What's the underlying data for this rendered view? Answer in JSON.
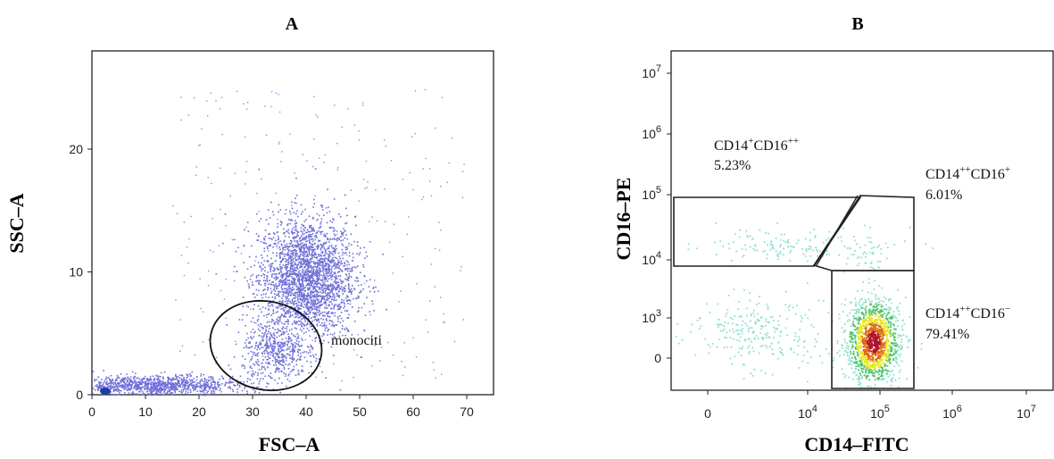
{
  "chart_data": [
    {
      "type": "scatter",
      "panel_label": "A",
      "xlabel": "FSC–A",
      "ylabel": "SSC–A",
      "xlim": [
        0,
        75
      ],
      "ylim": [
        0,
        28
      ],
      "x_ticks": [
        0,
        10,
        20,
        30,
        40,
        50,
        60,
        70
      ],
      "y_ticks": [
        0,
        10,
        20
      ],
      "point_color": "#6f6fd8",
      "dense_color": "#1a3fa0",
      "populations": [
        {
          "center": [
            40,
            9.5
          ],
          "spread": [
            4.5,
            2.5
          ],
          "count": 2600
        },
        {
          "center": [
            34,
            3.5
          ],
          "spread": [
            3.0,
            1.2
          ],
          "count": 450
        },
        {
          "center": [
            12,
            0.8
          ],
          "spread": [
            8.0,
            0.4
          ],
          "count": 1100
        }
      ],
      "gate": {
        "label": "monociti",
        "center": [
          32.5,
          4.0
        ],
        "radius": [
          10.5,
          3.6
        ],
        "angle_deg": -12
      }
    },
    {
      "type": "scatter",
      "panel_label": "B",
      "xlabel": "CD14–FITC",
      "ylabel": "CD16–PE",
      "xscale": "biexponential-log",
      "yscale": "biexponential-log",
      "x_ticks": [
        {
          "label": "0",
          "base": "",
          "exp": ""
        },
        {
          "label": "",
          "base": "10",
          "exp": "4"
        },
        {
          "label": "",
          "base": "10",
          "exp": "5"
        },
        {
          "label": "",
          "base": "10",
          "exp": "6"
        },
        {
          "label": "",
          "base": "10",
          "exp": "7"
        }
      ],
      "y_ticks": [
        {
          "label": "0",
          "base": "",
          "exp": ""
        },
        {
          "label": "",
          "base": "10",
          "exp": "3"
        },
        {
          "label": "",
          "base": "10",
          "exp": "4"
        },
        {
          "label": "",
          "base": "10",
          "exp": "5"
        },
        {
          "label": "",
          "base": "10",
          "exp": "6"
        },
        {
          "label": "",
          "base": "10",
          "exp": "7"
        }
      ],
      "gates": [
        {
          "name": "CD14+CD16++",
          "text": "CD14",
          "sup1": "+",
          "text2": "CD16",
          "sup2": "++",
          "percent": "5.23%"
        },
        {
          "name": "CD14++CD16+",
          "text": "CD14",
          "sup1": "++",
          "text2": "CD16",
          "sup2": "+",
          "percent": "6.01%"
        },
        {
          "name": "CD14++CD16-",
          "text": "CD14",
          "sup1": "++",
          "text2": "CD16",
          "sup2": "−",
          "percent": "79.41%"
        }
      ],
      "density_colors": [
        "#8fe0d0",
        "#4cc36a",
        "#e6e619",
        "#e06a10",
        "#b0102a"
      ]
    }
  ]
}
